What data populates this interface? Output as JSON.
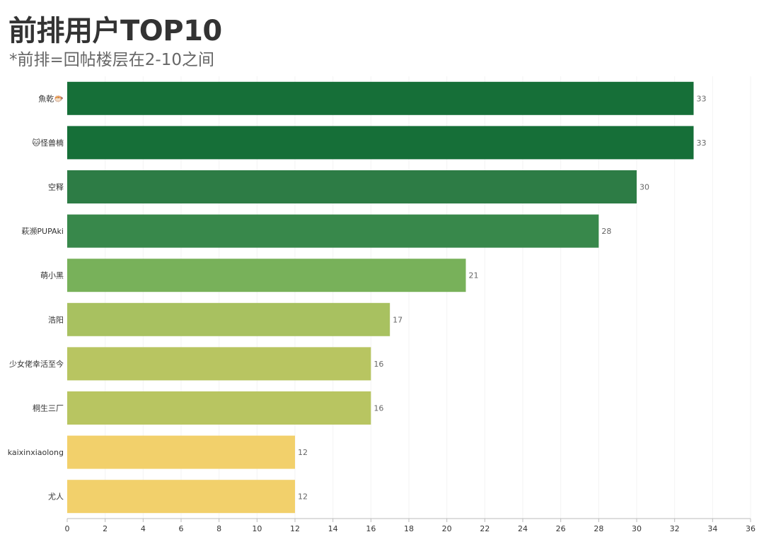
{
  "header": {
    "title": "前排用户TOP10",
    "subtitle": "*前排=回帖楼层在2-10之间"
  },
  "chart_data": {
    "type": "bar",
    "orientation": "horizontal",
    "title": "前排用户TOP10",
    "subtitle": "*前排=回帖楼层在2-10之间",
    "xlabel": "",
    "ylabel": "",
    "xlim": [
      0,
      36
    ],
    "xticks": [
      0,
      2,
      4,
      6,
      8,
      10,
      12,
      14,
      16,
      18,
      20,
      22,
      24,
      26,
      28,
      30,
      32,
      34,
      36
    ],
    "grid": true,
    "categories": [
      "魚乾🐡",
      "🐱怪兽楠",
      "空释",
      "萩濒PUPAki",
      "萌小黑",
      "浩阳",
      "少女佬幸活至今",
      "桐生三厂",
      "kaixinxiaolong",
      "尤人"
    ],
    "values": [
      33,
      33,
      30,
      28,
      21,
      17,
      16,
      16,
      12,
      12
    ],
    "colors": [
      "#166f38",
      "#166f38",
      "#2d7c45",
      "#38884b",
      "#78b15a",
      "#a8c160",
      "#b8c561",
      "#b8c561",
      "#f2d06b",
      "#f2d06b"
    ]
  }
}
